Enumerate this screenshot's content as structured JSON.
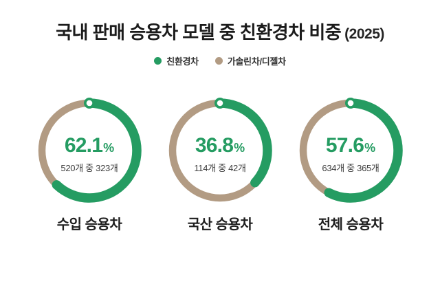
{
  "title": {
    "main": "국내 판매 승용차 모델 중 친환경차 비중",
    "year": "(2025)"
  },
  "colors": {
    "green": "#259c62",
    "tan": "#b29b83",
    "title_text": "#1b1b1b",
    "sub_text": "#3d3d3d"
  },
  "legend": {
    "items": [
      {
        "label": "친환경차",
        "color": "#259c62"
      },
      {
        "label": "가솔린차/디젤차",
        "color": "#b29b83"
      }
    ]
  },
  "unit": "%",
  "chart_data": [
    {
      "type": "pie",
      "variant": "donut",
      "title": "수입 승용차",
      "percent": 62.1,
      "percent_display": "62.1",
      "sub_label": "520개 중 323개",
      "total": 520,
      "count": 323,
      "series": [
        {
          "name": "친환경차",
          "value": 62.1
        },
        {
          "name": "가솔린차/디젤차",
          "value": 37.9
        }
      ],
      "legend_position": "top",
      "start_angle_deg": 0,
      "direction": "clockwise"
    },
    {
      "type": "pie",
      "variant": "donut",
      "title": "국산 승용차",
      "percent": 36.8,
      "percent_display": "36.8",
      "sub_label": "114개 중 42개",
      "total": 114,
      "count": 42,
      "series": [
        {
          "name": "친환경차",
          "value": 36.8
        },
        {
          "name": "가솔린차/디젤차",
          "value": 63.2
        }
      ],
      "legend_position": "top",
      "start_angle_deg": 0,
      "direction": "clockwise"
    },
    {
      "type": "pie",
      "variant": "donut",
      "title": "전체 승용차",
      "percent": 57.6,
      "percent_display": "57.6",
      "sub_label": "634개 중 365개",
      "total": 634,
      "count": 365,
      "series": [
        {
          "name": "친환경차",
          "value": 57.6
        },
        {
          "name": "가솔린차/디젤차",
          "value": 42.4
        }
      ],
      "legend_position": "top",
      "start_angle_deg": 0,
      "direction": "clockwise"
    }
  ]
}
